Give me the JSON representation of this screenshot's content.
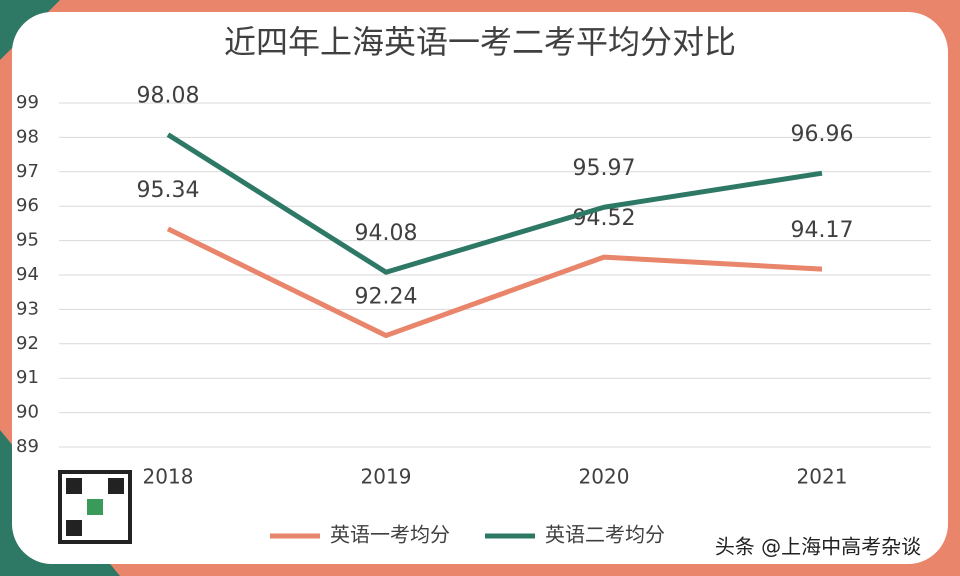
{
  "chart_data": {
    "type": "line",
    "title": "近四年上海英语一考二考平均分对比",
    "categories": [
      "2018",
      "2019",
      "2020",
      "2021"
    ],
    "series": [
      {
        "name": "英语一考均分",
        "color": "#e8856a",
        "values": [
          95.34,
          92.24,
          94.52,
          94.17
        ]
      },
      {
        "name": "英语二考均分",
        "color": "#2e7866",
        "values": [
          98.08,
          94.08,
          95.97,
          96.96
        ]
      }
    ],
    "ylim": [
      89,
      99
    ],
    "yticks": [
      89,
      90,
      91,
      92,
      93,
      94,
      95,
      96,
      97,
      98,
      99
    ],
    "grid": true,
    "legend": "bottom",
    "watermark": "头条 @上海中高考杂谈"
  }
}
